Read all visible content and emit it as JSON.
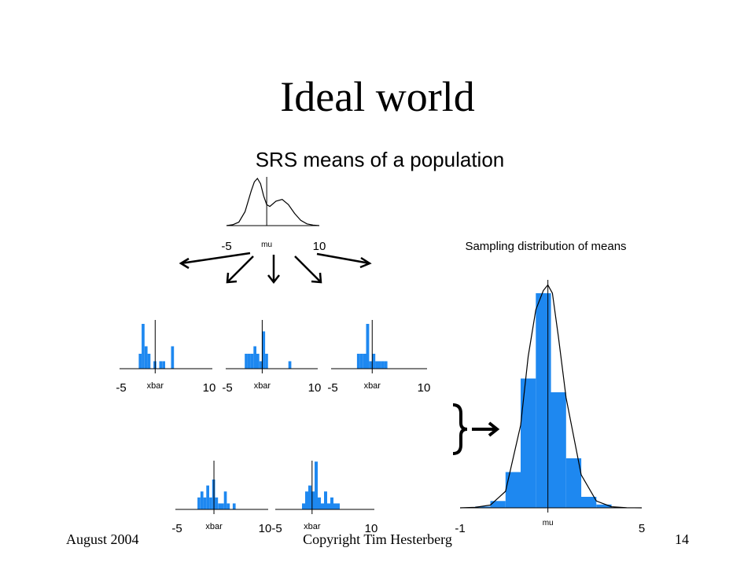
{
  "slide": {
    "title": "Ideal world",
    "footer_left": "August 2004",
    "footer_center": "Copyright Tim Hesterberg",
    "footer_right": "14"
  },
  "colors": {
    "bar": "#1E88F0",
    "ink": "#000000",
    "background": "#FFFFFF"
  },
  "chart_data": [
    {
      "type": "line",
      "role": "population density",
      "title": "SRS means of a population",
      "xlabel": "mu",
      "xlim": [
        -5,
        10
      ],
      "x_tick_labels": [
        "-5",
        "10"
      ],
      "mean_marker": 1.5,
      "x": [
        -5,
        -4,
        -3,
        -2,
        -1,
        -0.5,
        0,
        0.5,
        1,
        1.5,
        2,
        3,
        4,
        5,
        6,
        7,
        8,
        9,
        10
      ],
      "y": [
        0.0,
        0.005,
        0.02,
        0.08,
        0.2,
        0.25,
        0.27,
        0.24,
        0.17,
        0.12,
        0.11,
        0.14,
        0.15,
        0.12,
        0.07,
        0.03,
        0.01,
        0.003,
        0.0
      ]
    },
    {
      "type": "bar",
      "role": "sample histogram",
      "xlabel": "xbar",
      "xlim": [
        -5,
        10
      ],
      "x_tick_labels": [
        "-5",
        "10"
      ],
      "mean_marker": 0.8,
      "bin_edges": [
        -2,
        -1.5,
        -1,
        -0.5,
        0,
        0.5,
        1,
        1.5,
        2,
        2.5,
        3,
        3.5,
        4
      ],
      "counts": [
        2,
        6,
        3,
        2,
        0,
        1,
        0,
        1,
        1,
        0,
        0,
        3
      ]
    },
    {
      "type": "bar",
      "role": "sample histogram",
      "xlabel": "xbar",
      "xlim": [
        -5,
        10
      ],
      "x_tick_labels": [
        "-5",
        "10"
      ],
      "mean_marker": 1.0,
      "bin_edges": [
        -2,
        -1.5,
        -1,
        -0.5,
        0,
        0.5,
        1,
        1.5,
        2,
        2.5,
        3,
        3.5,
        4,
        4.5,
        5,
        5.5,
        6
      ],
      "counts": [
        2,
        2,
        2,
        3,
        2,
        1,
        5,
        2,
        0,
        0,
        0,
        0,
        0,
        0,
        0,
        1
      ]
    },
    {
      "type": "bar",
      "role": "sample histogram",
      "xlabel": "xbar",
      "xlim": [
        -5,
        10
      ],
      "x_tick_labels": [
        "-5",
        "10"
      ],
      "mean_marker": 1.5,
      "bin_edges": [
        -1,
        -0.5,
        0,
        0.5,
        1,
        1.5,
        2,
        2.5,
        3,
        3.5,
        4
      ],
      "counts": [
        2,
        2,
        2,
        6,
        1,
        2,
        1,
        1,
        1,
        1
      ]
    },
    {
      "type": "bar",
      "role": "sample histogram",
      "xlabel": "xbar",
      "xlim": [
        -5,
        10
      ],
      "x_tick_labels": [
        "-5",
        "10"
      ],
      "mean_marker": 1.3,
      "bin_edges": [
        -1.5,
        -1,
        -0.5,
        0,
        0.5,
        1,
        1.5,
        2,
        2.5,
        3,
        3.5,
        4,
        4.5,
        5
      ],
      "counts": [
        2,
        3,
        2,
        4,
        2,
        5,
        2,
        1,
        1,
        3,
        1,
        0,
        1
      ]
    },
    {
      "type": "bar",
      "role": "sample histogram",
      "xlabel": "xbar",
      "xlim": [
        -5,
        10
      ],
      "x_tick_labels": [
        "-5",
        "10"
      ],
      "mean_marker": 0.6,
      "bin_edges": [
        -1,
        -0.5,
        0,
        0.5,
        1,
        1.5,
        2,
        2.5,
        3,
        3.5,
        4,
        4.5,
        5
      ],
      "counts": [
        1,
        3,
        4,
        3,
        8,
        2,
        1,
        3,
        1,
        2,
        1,
        1
      ]
    },
    {
      "type": "bar",
      "role": "sampling distribution",
      "title": "Sampling distribution of means",
      "xlabel": "mu",
      "xlim": [
        -1,
        5
      ],
      "x_tick_labels": [
        "-1",
        "5"
      ],
      "mean_marker": 1.9,
      "bin_edges": [
        -1,
        -0.5,
        0,
        0.5,
        1,
        1.5,
        2,
        2.5,
        3,
        3.5,
        4
      ],
      "counts": [
        0,
        0.5,
        2.5,
        13,
        47,
        78,
        42,
        18,
        4,
        1.2
      ],
      "density_curve": {
        "x": [
          -1,
          -0.5,
          0,
          0.5,
          1,
          1.25,
          1.5,
          1.75,
          1.9,
          2.05,
          2.25,
          2.5,
          3,
          3.5,
          4,
          4.5,
          5
        ],
        "y": [
          0,
          0.2,
          1.0,
          6,
          30,
          55,
          72,
          79,
          81,
          78,
          62,
          40,
          12,
          2.5,
          0.4,
          0.05,
          0
        ]
      }
    }
  ]
}
